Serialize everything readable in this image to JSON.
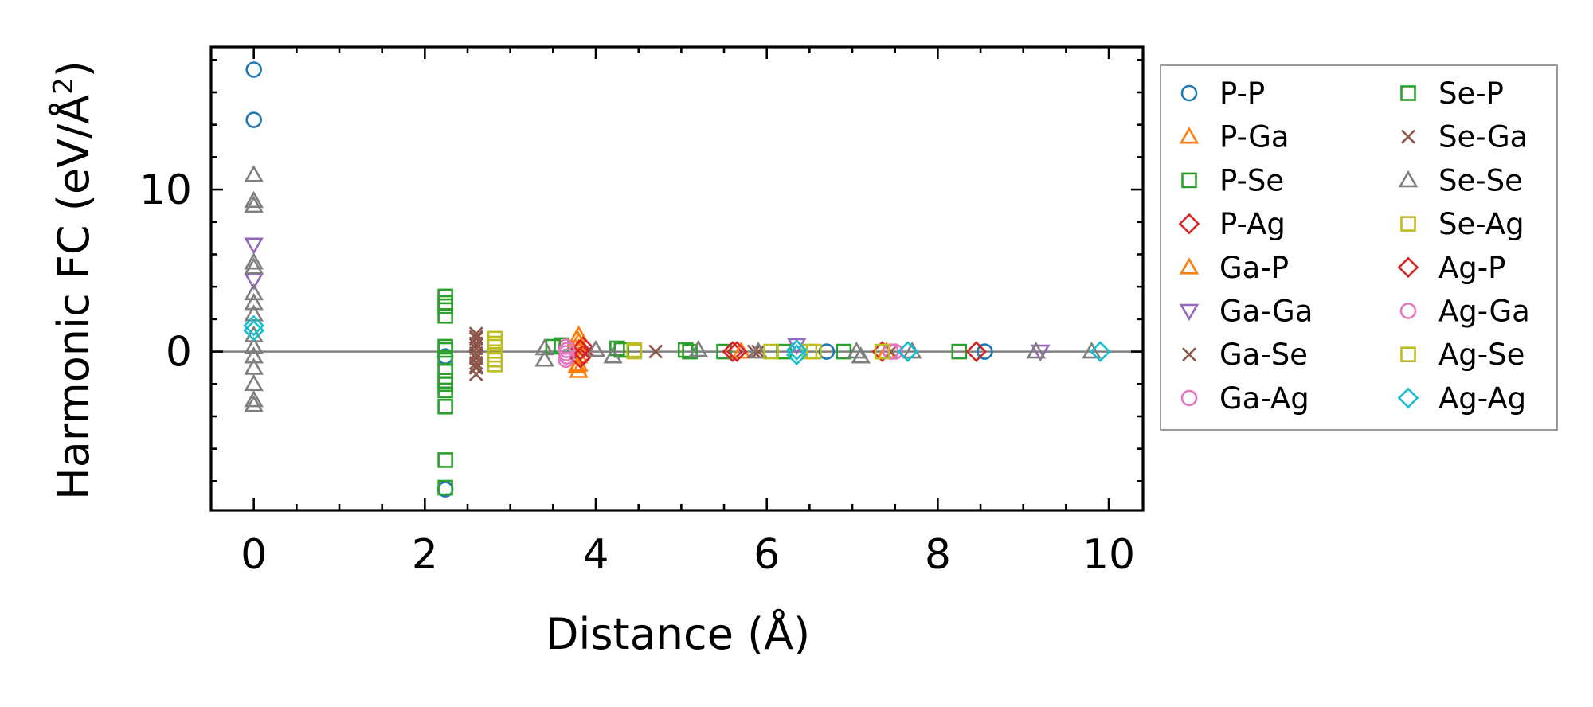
{
  "chart_data": {
    "type": "scatter",
    "title": "",
    "xlabel": "Distance (Å)",
    "ylabel_main": "Harmonic FC (eV/Å",
    "ylabel_sup": "2",
    "ylabel_close": ")",
    "xlim": [
      -0.5,
      10.4
    ],
    "ylim": [
      -9.8,
      18.8
    ],
    "xticks": [
      {
        "value": 0,
        "label": "0"
      },
      {
        "value": 2,
        "label": "2"
      },
      {
        "value": 4,
        "label": "4"
      },
      {
        "value": 6,
        "label": "6"
      },
      {
        "value": 8,
        "label": "8"
      },
      {
        "value": 10,
        "label": "10"
      }
    ],
    "yticks": [
      {
        "value": 0,
        "label": "0"
      },
      {
        "value": 10,
        "label": "10"
      }
    ],
    "x_minor_step": 0.5,
    "y_minor_step": 2,
    "zero_line": true,
    "legend_placement": "outside-right",
    "legend_columns": 2,
    "series": [
      {
        "name": "P-P",
        "marker": "circle",
        "color": "#1f77b4",
        "points": [
          [
            0,
            17.4
          ],
          [
            0,
            14.3
          ],
          [
            2.24,
            -8.5
          ],
          [
            2.24,
            -0.3
          ],
          [
            3.8,
            0
          ],
          [
            6.7,
            0
          ],
          [
            8.55,
            0
          ]
        ]
      },
      {
        "name": "P-Ga",
        "marker": "triangle-up",
        "color": "#ff7f0e",
        "points": [
          [
            3.8,
            1.0
          ],
          [
            3.8,
            0.6
          ],
          [
            3.8,
            0.2
          ],
          [
            3.8,
            -0.3
          ],
          [
            3.8,
            -0.8
          ],
          [
            3.8,
            -1.2
          ],
          [
            7.4,
            0
          ]
        ]
      },
      {
        "name": "P-Se",
        "marker": "square",
        "color": "#2ca02c",
        "points": [
          [
            2.24,
            3.4
          ],
          [
            2.24,
            2.8
          ],
          [
            2.24,
            2.2
          ],
          [
            2.24,
            0.3
          ],
          [
            2.24,
            -0.4
          ],
          [
            2.24,
            -1.2
          ],
          [
            2.24,
            -1.8
          ],
          [
            2.24,
            -2.4
          ],
          [
            2.24,
            -3.4
          ],
          [
            2.24,
            -6.7
          ],
          [
            3.6,
            0.4
          ],
          [
            4.25,
            0.2
          ],
          [
            5.05,
            0.1
          ],
          [
            5.5,
            0
          ],
          [
            6.2,
            0
          ]
        ]
      },
      {
        "name": "P-Ag",
        "marker": "diamond",
        "color": "#d62728",
        "points": [
          [
            3.85,
            0.3
          ],
          [
            3.85,
            -0.2
          ],
          [
            5.6,
            0
          ],
          [
            7.35,
            0
          ]
        ]
      },
      {
        "name": "Ga-P",
        "marker": "triangle-up",
        "color": "#ff7f0e",
        "points": [
          [
            3.78,
            0.8
          ],
          [
            3.78,
            -0.9
          ],
          [
            5.7,
            0
          ]
        ]
      },
      {
        "name": "Ga-Ga",
        "marker": "triangle-down",
        "color": "#9467bd",
        "points": [
          [
            0,
            6.6
          ],
          [
            0,
            4.4
          ],
          [
            6.35,
            0.4
          ],
          [
            9.2,
            0
          ]
        ]
      },
      {
        "name": "Ga-Se",
        "marker": "x",
        "color": "#8c564b",
        "points": [
          [
            2.6,
            1.1
          ],
          [
            2.6,
            0.8
          ],
          [
            2.6,
            0.5
          ],
          [
            2.6,
            0.2
          ],
          [
            2.6,
            -0.1
          ],
          [
            2.6,
            -0.4
          ],
          [
            2.6,
            -0.7
          ],
          [
            2.6,
            -1.0
          ],
          [
            2.6,
            -1.4
          ],
          [
            4.7,
            0
          ],
          [
            5.9,
            0
          ],
          [
            7.45,
            0
          ]
        ]
      },
      {
        "name": "Ga-Ag",
        "marker": "circle",
        "color": "#e377c2",
        "points": [
          [
            3.65,
            0.3
          ],
          [
            3.65,
            -0.1
          ],
          [
            3.65,
            -0.5
          ],
          [
            7.45,
            0
          ]
        ]
      },
      {
        "name": "Se-P",
        "marker": "square",
        "color": "#2ca02c",
        "points": [
          [
            2.24,
            3.0
          ],
          [
            2.24,
            0.1
          ],
          [
            2.24,
            -2.0
          ],
          [
            2.24,
            -8.4
          ],
          [
            3.5,
            0.3
          ],
          [
            4.3,
            0.1
          ],
          [
            5.1,
            0
          ],
          [
            6.9,
            0
          ],
          [
            8.25,
            0
          ]
        ]
      },
      {
        "name": "Se-Ga",
        "marker": "x",
        "color": "#8c564b",
        "points": [
          [
            2.6,
            0.9
          ],
          [
            2.6,
            0.4
          ],
          [
            2.6,
            -0.3
          ],
          [
            2.6,
            -0.9
          ],
          [
            5.85,
            0
          ]
        ]
      },
      {
        "name": "Se-Se",
        "marker": "triangle-up",
        "color": "#7f7f7f",
        "points": [
          [
            0,
            10.9
          ],
          [
            0,
            9.3
          ],
          [
            0,
            9.0
          ],
          [
            0,
            5.5
          ],
          [
            0,
            5.2
          ],
          [
            0,
            3.6
          ],
          [
            0,
            3.0
          ],
          [
            0,
            2.3
          ],
          [
            0,
            1.0
          ],
          [
            0,
            0.3
          ],
          [
            0,
            -0.3
          ],
          [
            0,
            -1.0
          ],
          [
            0,
            -2.0
          ],
          [
            0,
            -3.0
          ],
          [
            0,
            -3.3
          ],
          [
            3.4,
            0.2
          ],
          [
            3.4,
            -0.5
          ],
          [
            4.0,
            0.1
          ],
          [
            4.2,
            -0.3
          ],
          [
            5.2,
            0.1
          ],
          [
            5.9,
            0
          ],
          [
            7.05,
            0
          ],
          [
            7.1,
            -0.3
          ],
          [
            7.7,
            0
          ],
          [
            9.15,
            0
          ],
          [
            9.8,
            0
          ]
        ]
      },
      {
        "name": "Se-Ag",
        "marker": "square",
        "color": "#bcbd22",
        "points": [
          [
            2.82,
            0.8
          ],
          [
            2.82,
            0.3
          ],
          [
            2.82,
            -0.2
          ],
          [
            2.82,
            -0.8
          ],
          [
            4.45,
            0
          ],
          [
            6.05,
            0
          ],
          [
            6.5,
            0
          ]
        ]
      },
      {
        "name": "Ag-P",
        "marker": "diamond",
        "color": "#d62728",
        "points": [
          [
            3.82,
            0.1
          ],
          [
            3.82,
            -0.4
          ],
          [
            5.65,
            0
          ],
          [
            8.45,
            0
          ]
        ]
      },
      {
        "name": "Ag-Ga",
        "marker": "circle",
        "color": "#e377c2",
        "points": [
          [
            3.66,
            0.1
          ],
          [
            3.66,
            -0.3
          ],
          [
            7.5,
            0
          ]
        ]
      },
      {
        "name": "Ag-Se",
        "marker": "square",
        "color": "#bcbd22",
        "points": [
          [
            2.82,
            0.5
          ],
          [
            2.82,
            -0.5
          ],
          [
            4.45,
            0.1
          ],
          [
            6.55,
            0
          ],
          [
            7.35,
            0
          ]
        ]
      },
      {
        "name": "Ag-Ag",
        "marker": "diamond",
        "color": "#17becf",
        "points": [
          [
            0,
            1.6
          ],
          [
            0,
            1.3
          ],
          [
            6.35,
            0.1
          ],
          [
            6.35,
            -0.2
          ],
          [
            7.65,
            0
          ],
          [
            9.9,
            0
          ]
        ]
      }
    ]
  }
}
